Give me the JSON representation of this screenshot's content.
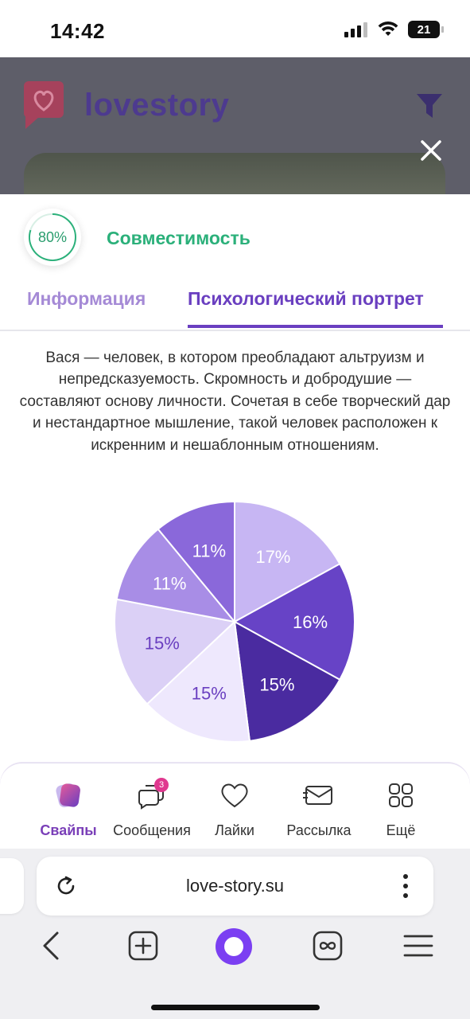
{
  "status": {
    "time": "14:42",
    "battery": "21"
  },
  "app": {
    "logo_text": "lovestory"
  },
  "compatibility": {
    "value": "80%",
    "fraction": 0.8,
    "label": "Совместимость",
    "color": "#2bb07a"
  },
  "tabs": [
    {
      "label": "Информация",
      "active": false
    },
    {
      "label": "Психологический портрет",
      "active": true
    }
  ],
  "description": "Вася — человек, в котором преобладают альтруизм и непредсказуемость. Скромность и добродушие — составляют основу личности. Сочетая в себе творческий дар и нестандартное мышление, такой человек расположен к искренним и нешаблонным отношениям.",
  "chart_data": {
    "type": "pie",
    "values": [
      17,
      16,
      15,
      15,
      15,
      11,
      11
    ],
    "labels": [
      "17%",
      "16%",
      "15%",
      "15%",
      "15%",
      "11%",
      "11%"
    ],
    "colors": [
      "#c7b6f3",
      "#6743c6",
      "#4a2ba0",
      "#eee8fd",
      "#dbd0f6",
      "#a88de6",
      "#8a68da"
    ],
    "label_colors": [
      "#ffffff",
      "#ffffff",
      "#ffffff",
      "#6a3fc0",
      "#6a3fc0",
      "#ffffff",
      "#ffffff"
    ]
  },
  "bottom_nav": {
    "items": [
      {
        "label": "Свайпы",
        "icon": "swipes-icon",
        "active": true
      },
      {
        "label": "Сообщения",
        "icon": "messages-icon",
        "badge": "3",
        "active": false
      },
      {
        "label": "Лайки",
        "icon": "heart-icon",
        "active": false
      },
      {
        "label": "Рассылка",
        "icon": "mailing-icon",
        "active": false
      },
      {
        "label": "Ещё",
        "icon": "grid-icon",
        "active": false
      }
    ]
  },
  "browser": {
    "url": "love-story.su"
  }
}
